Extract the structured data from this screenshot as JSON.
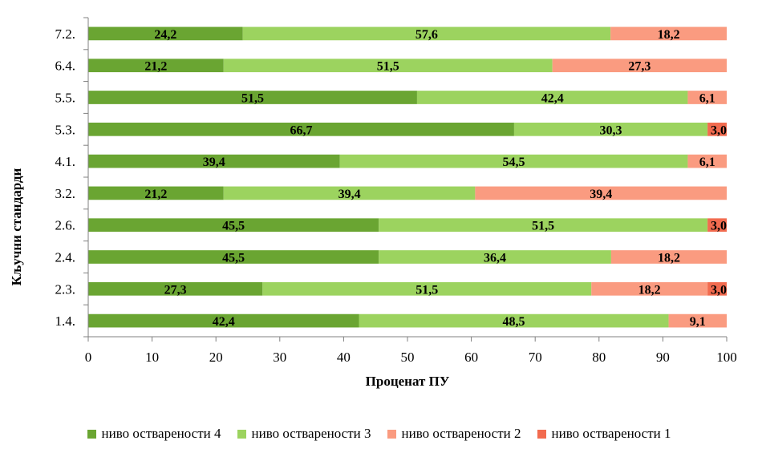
{
  "chart_data": {
    "type": "bar",
    "orientation": "horizontal",
    "stacked": true,
    "xlabel": "Проценат ПУ",
    "ylabel": "Кључни стандарди",
    "xlim": [
      0,
      100
    ],
    "xticks": [
      "0",
      "10",
      "20",
      "30",
      "40",
      "50",
      "60",
      "70",
      "80",
      "90",
      "100"
    ],
    "grid": false,
    "legend_position": "bottom",
    "categories": [
      "7.2.",
      "6.4.",
      "5.5.",
      "5.3.",
      "4.1.",
      "3.2.",
      "2.6.",
      "2.4.",
      "2.3.",
      "1.4."
    ],
    "series": [
      {
        "name": "ниво остварености 4",
        "color": "#6aa532",
        "values": [
          24.2,
          21.2,
          51.5,
          66.7,
          39.4,
          21.2,
          45.5,
          45.5,
          27.3,
          42.4
        ],
        "labels": [
          "24,2",
          "21,2",
          "51,5",
          "66,7",
          "39,4",
          "21,2",
          "45,5",
          "45,5",
          "27,3",
          "42,4"
        ]
      },
      {
        "name": "ниво остварености 3",
        "color": "#9cd35f",
        "values": [
          57.6,
          51.5,
          42.4,
          30.3,
          54.5,
          39.4,
          51.5,
          36.4,
          51.5,
          48.5
        ],
        "labels": [
          "57,6",
          "51,5",
          "42,4",
          "30,3",
          "54,5",
          "39,4",
          "51,5",
          "36,4",
          "51,5",
          "48,5"
        ]
      },
      {
        "name": "ниво остварености 2",
        "color": "#fa9b80",
        "values": [
          18.2,
          27.3,
          6.1,
          0,
          6.1,
          39.4,
          0,
          18.2,
          18.2,
          9.1
        ],
        "labels": [
          "18,2",
          "27,3",
          "6,1",
          "",
          "6,1",
          "39,4",
          "",
          "18,2",
          "18,2",
          "9,1"
        ]
      },
      {
        "name": "ниво остварености 1",
        "color": "#f26b4f",
        "values": [
          0,
          0,
          0,
          3.0,
          0,
          0,
          3.0,
          0,
          3.0,
          0
        ],
        "labels": [
          "",
          "",
          "",
          "3,0",
          "",
          "",
          "3,0",
          "",
          "3,0",
          ""
        ]
      }
    ]
  }
}
